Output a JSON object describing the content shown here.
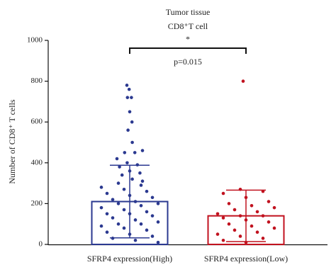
{
  "chart_data": {
    "type": "bar_scatter",
    "title": "Tumor tissue",
    "subtitle": "CD8⁺T cell",
    "y_label": "Number of CD8⁺ T cells",
    "significance": "*",
    "p_value_label": "p=0.015",
    "categories": [
      "SFRP4 expression(High)",
      "SFRP4 expression(Low)"
    ],
    "colors": [
      "#2b3990",
      "#c1121f"
    ],
    "values": [
      210,
      140
    ],
    "errors": [
      178,
      126
    ],
    "points": [
      [
        780,
        760,
        720,
        720,
        650,
        600,
        560,
        500,
        460,
        450,
        450,
        420,
        400,
        390,
        380,
        360,
        350,
        340,
        320,
        310,
        300,
        290,
        280,
        270,
        260,
        250,
        240,
        230,
        220,
        210,
        200,
        200,
        190,
        180,
        170,
        160,
        150,
        150,
        140,
        130,
        120,
        110,
        100,
        100,
        90,
        80,
        70,
        60,
        50,
        40,
        30,
        20,
        10
      ],
      [
        800,
        270,
        260,
        250,
        230,
        210,
        200,
        190,
        180,
        170,
        160,
        150,
        140,
        140,
        130,
        120,
        110,
        100,
        90,
        80,
        70,
        60,
        50,
        40,
        30,
        20,
        10
      ]
    ],
    "ylim": [
      0,
      1000
    ],
    "yticks": [
      0,
      200,
      400,
      600,
      800,
      1000
    ]
  }
}
